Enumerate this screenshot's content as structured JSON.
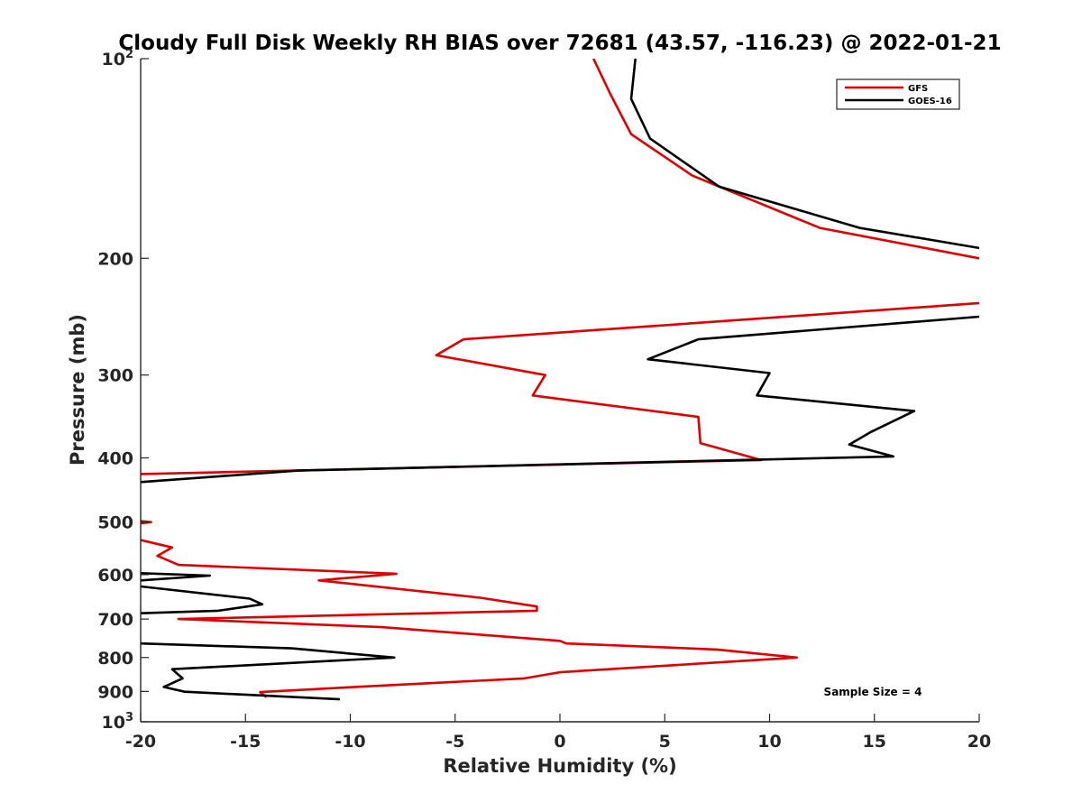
{
  "chart_data": {
    "type": "line",
    "title": "Cloudy Full Disk Weekly RH BIAS over 72681 (43.57, -116.23) @ 2022-01-21",
    "xlabel": "Relative Humidity (%)",
    "ylabel": "Pressure (mb)",
    "xlim": [
      -20,
      20
    ],
    "ylim": [
      100,
      1000
    ],
    "y_scale": "log",
    "y_reversed": true,
    "x_ticks": [
      -20,
      -15,
      -10,
      -5,
      0,
      5,
      10,
      15,
      20
    ],
    "x_tick_labels": [
      "-20",
      "-15",
      "-10",
      "-5",
      "0",
      "5",
      "10",
      "15",
      "20"
    ],
    "y_ticks": [
      100,
      200,
      300,
      400,
      500,
      600,
      700,
      800,
      900,
      1000
    ],
    "y_tick_labels": [
      {
        "base": "10",
        "exp": "2"
      },
      {
        "base": "200",
        "exp": ""
      },
      {
        "base": "300",
        "exp": ""
      },
      {
        "base": "400",
        "exp": ""
      },
      {
        "base": "500",
        "exp": ""
      },
      {
        "base": "600",
        "exp": ""
      },
      {
        "base": "700",
        "exp": ""
      },
      {
        "base": "800",
        "exp": ""
      },
      {
        "base": "900",
        "exp": ""
      },
      {
        "base": "10",
        "exp": "3"
      }
    ],
    "legend_position": "top-right",
    "grid": false,
    "annotation": "Sample Size = 4",
    "series": [
      {
        "name": "GFS",
        "color": "#e00000",
        "segments": [
          [
            [
              1.6,
              100
            ],
            [
              2.4,
              113
            ],
            [
              3.4,
              130
            ],
            [
              6.3,
              150
            ],
            [
              12.4,
              180
            ],
            [
              20,
              200
            ]
          ],
          [
            [
              20,
              230
            ],
            [
              20.6,
              233
            ],
            [
              -4.6,
              265
            ],
            [
              -5.9,
              280
            ],
            [
              -0.7,
              300
            ],
            [
              -1.3,
              322
            ],
            [
              6.6,
              347
            ],
            [
              6.7,
              380
            ],
            [
              9.6,
              403
            ],
            [
              -20,
              423
            ]
          ],
          [
            [
              -20,
              498
            ],
            [
              -19.5,
              500
            ],
            [
              -20,
              502
            ]
          ],
          [
            [
              -20,
              532
            ],
            [
              -18.5,
              546
            ],
            [
              -19.2,
              562
            ],
            [
              -18.2,
              580
            ],
            [
              -7.8,
              598
            ],
            [
              -11.5,
              612
            ],
            [
              -3.8,
              650
            ],
            [
              -1.1,
              670
            ],
            [
              -1.1,
              680
            ],
            [
              -18.2,
              700
            ],
            [
              -8.5,
              720
            ],
            [
              0,
              755
            ],
            [
              0.3,
              762
            ],
            [
              7.5,
              778
            ],
            [
              11.3,
              800
            ],
            [
              0,
              842
            ],
            [
              -1.7,
              860
            ],
            [
              -10,
              887
            ],
            [
              -14.3,
              902
            ],
            [
              -14,
              918
            ]
          ]
        ]
      },
      {
        "name": "GOES-16",
        "color": "#000000",
        "segments": [
          [
            [
              3.6,
              100
            ],
            [
              3.4,
              115
            ],
            [
              4.3,
              132
            ],
            [
              7.6,
              156
            ],
            [
              14.3,
              180
            ],
            [
              20,
              193
            ]
          ],
          [
            [
              20,
              245
            ],
            [
              6.6,
              265
            ],
            [
              4.2,
              284
            ],
            [
              10.0,
              298
            ],
            [
              9.4,
              322
            ],
            [
              16.9,
              340
            ],
            [
              14.8,
              366
            ],
            [
              13.8,
              382
            ],
            [
              15.9,
              398
            ],
            [
              -12.5,
              418
            ],
            [
              -20,
              435
            ]
          ],
          [
            [
              -20,
              597
            ],
            [
              -16.7,
              602
            ],
            [
              -20,
              612
            ]
          ],
          [
            [
              -20,
              625
            ],
            [
              -14.8,
              652
            ],
            [
              -14.2,
              665
            ],
            [
              -16.3,
              680
            ],
            [
              -20,
              686
            ]
          ],
          [
            [
              -20,
              762
            ],
            [
              -12.8,
              775
            ],
            [
              -7.9,
              800
            ],
            [
              -18.5,
              833
            ],
            [
              -18.0,
              860
            ],
            [
              -18.9,
              886
            ],
            [
              -17.9,
              901
            ],
            [
              -10.5,
              925
            ]
          ]
        ]
      }
    ]
  }
}
